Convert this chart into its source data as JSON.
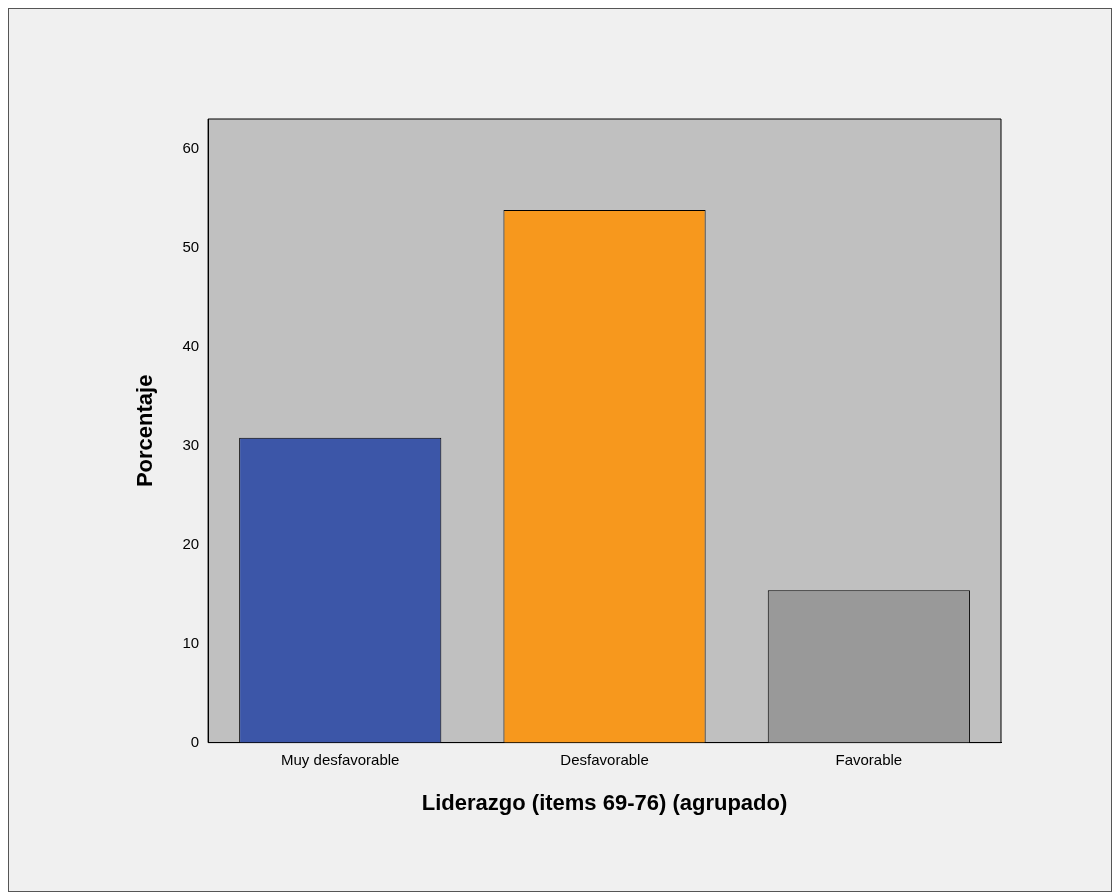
{
  "chart_data": {
    "type": "bar",
    "xlabel": "Liderazgo (items 69-76) (agrupado)",
    "ylabel": "Porcentaje",
    "categories": [
      "Muy desfavorable",
      "Desfavorable",
      "Favorable"
    ],
    "values": [
      30.8,
      53.8,
      15.4
    ],
    "colors": [
      "#3c56a8",
      "#f7981d",
      "#999999"
    ],
    "ylim": [
      0,
      63
    ],
    "yticks": [
      0,
      10,
      20,
      30,
      40,
      50,
      60
    ],
    "grid": false,
    "legend": false
  }
}
